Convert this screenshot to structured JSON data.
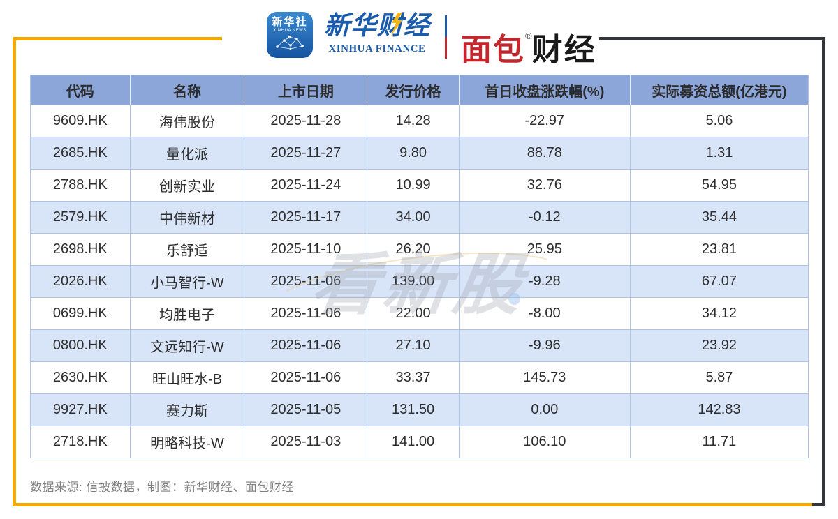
{
  "brand": {
    "xinhua_icon": {
      "cn": "新华社",
      "en": "XINHUA NEWS"
    },
    "xinhua_finance": {
      "cn": "新华财经",
      "en": "XINHUA FINANCE"
    },
    "bread_finance": {
      "red": "面包",
      "black": "财经",
      "reg": "®"
    }
  },
  "colors": {
    "frame_orange": "#F2A90A",
    "frame_dark": "#333538",
    "header_bg": "#8CA6D9",
    "row_alt_bg": "#D8E4F8",
    "grid_line": "#AEC2E2",
    "xinhua_blue": "#1A5CAB",
    "bread_red": "#C1272D"
  },
  "watermark": "看新股",
  "footer": {
    "source_note": "数据来源: 信披数据，制图：新华财经、面包财经"
  },
  "chart_data": {
    "type": "table",
    "columns": [
      "代码",
      "名称",
      "上市日期",
      "发行价格",
      "首日收盘涨跌幅(%)",
      "实际募资总额(亿港元)"
    ],
    "col_widths_pct": [
      12.8,
      14.7,
      15.8,
      11.8,
      22.0,
      22.9
    ],
    "rows": [
      [
        "9609.HK",
        "海伟股份",
        "2025-11-28",
        "14.28",
        "-22.97",
        "5.06"
      ],
      [
        "2685.HK",
        "量化派",
        "2025-11-27",
        "9.80",
        "88.78",
        "1.31"
      ],
      [
        "2788.HK",
        "创新实业",
        "2025-11-24",
        "10.99",
        "32.76",
        "54.95"
      ],
      [
        "2579.HK",
        "中伟新材",
        "2025-11-17",
        "34.00",
        "-0.12",
        "35.44"
      ],
      [
        "2698.HK",
        "乐舒适",
        "2025-11-10",
        "26.20",
        "25.95",
        "23.81"
      ],
      [
        "2026.HK",
        "小马智行-W",
        "2025-11-06",
        "139.00",
        "-9.28",
        "67.07"
      ],
      [
        "0699.HK",
        "均胜电子",
        "2025-11-06",
        "22.00",
        "-8.00",
        "34.12"
      ],
      [
        "0800.HK",
        "文远知行-W",
        "2025-11-06",
        "27.10",
        "-9.96",
        "23.92"
      ],
      [
        "2630.HK",
        "旺山旺水-B",
        "2025-11-06",
        "33.37",
        "145.73",
        "5.87"
      ],
      [
        "9927.HK",
        "赛力斯",
        "2025-11-05",
        "131.50",
        "0.00",
        "142.83"
      ],
      [
        "2718.HK",
        "明略科技-W",
        "2025-11-03",
        "141.00",
        "106.10",
        "11.71"
      ]
    ]
  }
}
